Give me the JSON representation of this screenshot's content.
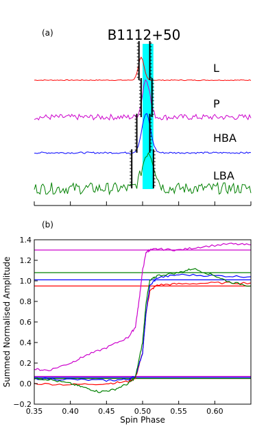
{
  "figure": {
    "panel_a_label": "(a)",
    "panel_b_label": "(b)"
  },
  "chart_data": [
    {
      "panel": "(a)",
      "type": "line",
      "title": "B1112+50",
      "xlim": [
        0.35,
        0.65
      ],
      "highlight_band": [
        0.5,
        0.515
      ],
      "highlight_color": "#00ffff",
      "series": [
        {
          "name": "L",
          "color": "#ff0000",
          "baseline": 0,
          "peak_x": 0.498,
          "peak_height": 0.55,
          "peak_width": 0.004,
          "noise": 0.01
        },
        {
          "name": "P",
          "color": "#cc00cc",
          "baseline": 1,
          "peak_x": 0.505,
          "peak_height": 0.95,
          "peak_width": 0.005,
          "noise": 0.07
        },
        {
          "name": "HBA",
          "color": "#0000ff",
          "baseline": 2,
          "peak_x": 0.505,
          "peak_height": 0.95,
          "peak_width": 0.006,
          "noise": 0.02
        },
        {
          "name": "LBA",
          "color": "#008000",
          "baseline": 3,
          "peak_x": 0.508,
          "peak_height": 0.9,
          "peak_width": 0.008,
          "noise": 0.14
        }
      ],
      "markers": [
        {
          "series": "L",
          "left": 0.495,
          "right": 0.51
        },
        {
          "series": "P",
          "left": 0.498,
          "right": 0.513
        },
        {
          "series": "HBA",
          "left": 0.492,
          "right": 0.51
        },
        {
          "series": "LBA",
          "left": 0.485,
          "right": 0.515
        }
      ]
    },
    {
      "panel": "(b)",
      "type": "line",
      "xlabel": "Spin Phase",
      "ylabel": "Summed Normalised Amplitude",
      "xlim": [
        0.35,
        0.65
      ],
      "ylim": [
        -0.2,
        1.4
      ],
      "xticks": [
        "0.35",
        "0.40",
        "0.45",
        "0.50",
        "0.55",
        "0.60"
      ],
      "yticks": [
        "−0.2",
        "0.0",
        "0.2",
        "0.4",
        "0.6",
        "0.8",
        "1.0",
        "1.2",
        "1.4"
      ],
      "xtick_values": [
        0.35,
        0.4,
        0.45,
        0.5,
        0.55,
        0.6
      ],
      "ytick_values": [
        -0.2,
        0.0,
        0.2,
        0.4,
        0.6,
        0.8,
        1.0,
        1.2,
        1.4
      ],
      "series": [
        {
          "name": "L",
          "color": "#ff0000",
          "x": [
            0.35,
            0.4,
            0.45,
            0.48,
            0.49,
            0.5,
            0.505,
            0.51,
            0.52,
            0.55,
            0.6,
            0.65
          ],
          "y": [
            0.0,
            -0.01,
            0.0,
            0.02,
            0.05,
            0.3,
            0.7,
            0.9,
            0.96,
            0.97,
            0.98,
            0.98
          ],
          "h_upper": 0.95,
          "h_lower": 0.05
        },
        {
          "name": "P",
          "color": "#cc00cc",
          "x": [
            0.35,
            0.37,
            0.4,
            0.42,
            0.45,
            0.48,
            0.49,
            0.495,
            0.5,
            0.505,
            0.51,
            0.52,
            0.55,
            0.58,
            0.62,
            0.65
          ],
          "y": [
            0.14,
            0.13,
            0.2,
            0.27,
            0.35,
            0.45,
            0.55,
            0.8,
            1.1,
            1.28,
            1.3,
            1.31,
            1.3,
            1.33,
            1.36,
            1.35
          ],
          "h_upper": 1.3,
          "h_lower": 0.07
        },
        {
          "name": "HBA",
          "color": "#0000ff",
          "x": [
            0.35,
            0.4,
            0.45,
            0.48,
            0.49,
            0.5,
            0.505,
            0.51,
            0.52,
            0.55,
            0.6,
            0.65
          ],
          "y": [
            0.05,
            0.04,
            0.03,
            0.04,
            0.07,
            0.3,
            0.7,
            0.95,
            1.03,
            1.06,
            1.05,
            1.04
          ],
          "h_upper": 1.01,
          "h_lower": 0.06
        },
        {
          "name": "LBA",
          "color": "#008000",
          "x": [
            0.35,
            0.37,
            0.4,
            0.42,
            0.44,
            0.46,
            0.48,
            0.49,
            0.5,
            0.505,
            0.51,
            0.52,
            0.55,
            0.57,
            0.6,
            0.62,
            0.65
          ],
          "y": [
            0.05,
            0.04,
            0.0,
            -0.04,
            -0.08,
            -0.06,
            0.0,
            0.06,
            0.4,
            0.8,
            1.0,
            1.05,
            1.08,
            1.12,
            1.05,
            0.99,
            0.95
          ],
          "h_upper": 1.08,
          "h_lower": 0.05
        }
      ]
    }
  ]
}
